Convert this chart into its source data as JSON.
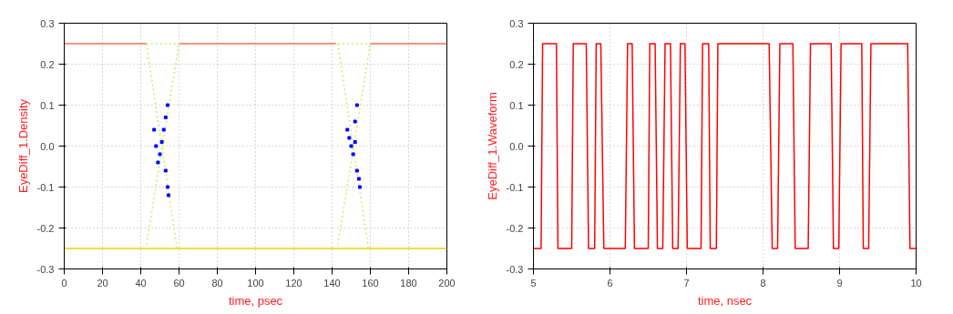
{
  "chart_data": [
    {
      "type": "line",
      "xlabel": "time, psec",
      "ylabel": "EyeDiff_1.Density",
      "xlim": [
        0,
        200
      ],
      "ylim": [
        -0.3,
        0.3
      ],
      "xticks": [
        0,
        20,
        40,
        60,
        80,
        100,
        120,
        140,
        160,
        180,
        200
      ],
      "yticks": [
        -0.3,
        -0.2,
        -0.1,
        {
          "value": 0,
          "label": "0.0"
        },
        0.1,
        0.2,
        0.3
      ],
      "grid": true,
      "series": [
        {
          "color": "#f07050",
          "x": [
            0,
            43
          ],
          "values": [
            0.25,
            0.25
          ]
        },
        {
          "color": "#f07050",
          "x": [
            60,
            142
          ],
          "values": [
            0.25,
            0.25
          ]
        },
        {
          "color": "#f07050",
          "x": [
            160,
            200
          ],
          "values": [
            0.25,
            0.25
          ]
        },
        {
          "color": "#f0d000",
          "x": [
            0,
            200
          ],
          "values": [
            -0.25,
            -0.25
          ]
        },
        {
          "color": "#c8f060",
          "line_style": "dotted",
          "x": [
            43,
            60
          ],
          "values": [
            0.25,
            0.25
          ]
        },
        {
          "color": "#c8f060",
          "line_style": "dotted",
          "x": [
            143,
            160
          ],
          "values": [
            0.25,
            0.25
          ]
        },
        {
          "color": "#c8f060",
          "line_style": "dotted",
          "x": [
            43,
            60
          ],
          "values": [
            -0.24,
            0.25
          ]
        },
        {
          "color": "#c8f060",
          "line_style": "dotted",
          "x": [
            43,
            59
          ],
          "values": [
            0.25,
            -0.25
          ]
        },
        {
          "color": "#c8f060",
          "line_style": "dotted",
          "x": [
            143,
            160
          ],
          "values": [
            -0.24,
            0.25
          ]
        },
        {
          "color": "#c8f060",
          "line_style": "dotted",
          "x": [
            143,
            159
          ],
          "values": [
            0.25,
            -0.25
          ]
        },
        {
          "type": "scatter",
          "color": "#0000ff",
          "marker": "square",
          "x": [
            47,
            48,
            49,
            50,
            51,
            52,
            53,
            54,
            54.5,
            53,
            54,
            148,
            149,
            150,
            151,
            152,
            153,
            154,
            154.5,
            152,
            153
          ],
          "values": [
            0.04,
            0.0,
            -0.04,
            -0.02,
            0.01,
            0.04,
            -0.06,
            -0.1,
            -0.12,
            0.07,
            0.1,
            0.04,
            0.02,
            0.0,
            -0.02,
            0.01,
            -0.06,
            -0.08,
            -0.1,
            0.06,
            0.1
          ]
        }
      ]
    },
    {
      "type": "line",
      "xlabel": "time, nsec",
      "ylabel": "EyeDiff_1.Waveform",
      "xlim": [
        5,
        10
      ],
      "ylim": [
        -0.3,
        0.3
      ],
      "xticks": [
        5,
        6,
        7,
        8,
        9,
        10
      ],
      "yticks": [
        -0.3,
        -0.2,
        -0.1,
        {
          "value": 0,
          "label": "0.0"
        },
        0.1,
        0.2,
        0.3
      ],
      "grid": true,
      "series": [
        {
          "color": "#ff0000",
          "x": [
            5.0,
            5.1,
            5.12,
            5.3,
            5.32,
            5.5,
            5.52,
            5.69,
            5.72,
            5.8,
            5.82,
            5.88,
            5.92,
            6.2,
            6.23,
            6.29,
            6.32,
            6.5,
            6.52,
            6.59,
            6.62,
            6.69,
            6.72,
            6.79,
            6.82,
            6.89,
            6.92,
            6.98,
            7.01,
            7.19,
            7.21,
            7.29,
            7.31,
            7.39,
            7.41,
            8.08,
            8.12,
            8.19,
            8.22,
            8.39,
            8.42,
            8.59,
            8.62,
            8.89,
            8.92,
            8.99,
            9.02,
            9.29,
            9.31,
            9.38,
            9.41,
            9.89,
            9.92,
            10.0
          ],
          "values": [
            -0.25,
            -0.25,
            0.25,
            0.25,
            -0.25,
            -0.25,
            0.25,
            0.25,
            -0.25,
            -0.25,
            0.25,
            0.25,
            -0.25,
            -0.25,
            0.25,
            0.25,
            -0.25,
            -0.25,
            0.25,
            0.25,
            -0.25,
            -0.25,
            0.25,
            0.25,
            -0.25,
            -0.25,
            0.25,
            0.25,
            -0.25,
            -0.25,
            0.25,
            0.25,
            -0.25,
            -0.25,
            0.25,
            0.25,
            -0.25,
            -0.25,
            0.25,
            0.25,
            -0.25,
            -0.25,
            0.25,
            0.25,
            -0.25,
            -0.25,
            0.25,
            0.25,
            -0.25,
            -0.25,
            0.25,
            0.25,
            -0.25,
            -0.25
          ]
        }
      ]
    }
  ]
}
